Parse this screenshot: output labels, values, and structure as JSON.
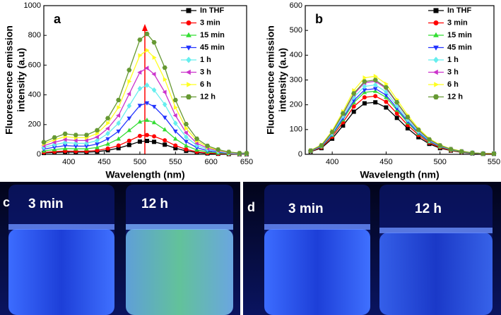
{
  "chart_data": [
    {
      "type": "line",
      "panel": "a",
      "xlabel": "Wavelength (nm)",
      "ylabel": [
        "Fluorescence emission",
        "intensity (a.u)"
      ],
      "x": [
        365,
        380,
        395,
        410,
        425,
        440,
        455,
        470,
        485,
        500,
        510,
        520,
        535,
        550,
        565,
        580,
        595,
        610,
        625,
        640,
        650
      ],
      "xlim": [
        365,
        650
      ],
      "xticks": [
        400,
        450,
        500,
        550,
        600,
        650
      ],
      "ylim": [
        0,
        1000
      ],
      "yticks": [
        0,
        200,
        400,
        600,
        800,
        1000
      ],
      "series": [
        {
          "name": "In THF",
          "color": "#000000",
          "marker": "square",
          "values": [
            9,
            13,
            15,
            14,
            14,
            18,
            27,
            41,
            63,
            86,
            90,
            84,
            65,
            41,
            23,
            12,
            6,
            4,
            2,
            1,
            1
          ]
        },
        {
          "name": "3 min",
          "color": "#ff0000",
          "marker": "circle",
          "values": [
            13,
            18,
            22,
            21,
            21,
            26,
            39,
            59,
            91,
            124,
            130,
            121,
            94,
            59,
            33,
            17,
            9,
            5,
            3,
            1,
            1
          ]
        },
        {
          "name": "15 min",
          "color": "#33dd33",
          "marker": "up",
          "values": [
            23,
            32,
            39,
            37,
            37,
            46,
            69,
            104,
            161,
            219,
            230,
            214,
            166,
            104,
            58,
            30,
            16,
            9,
            5,
            2,
            2
          ]
        },
        {
          "name": "45 min",
          "color": "#2233ff",
          "marker": "down",
          "values": [
            35,
            48,
            59,
            55,
            55,
            69,
            104,
            155,
            242,
            328,
            345,
            321,
            248,
            155,
            86,
            45,
            24,
            14,
            7,
            3,
            3
          ]
        },
        {
          "name": "1 h",
          "color": "#66eeee",
          "marker": "diamond",
          "values": [
            47,
            65,
            79,
            74,
            74,
            93,
            140,
            209,
            326,
            442,
            465,
            432,
            335,
            209,
            116,
            60,
            33,
            19,
            9,
            5,
            5
          ]
        },
        {
          "name": "3 h",
          "color": "#cc33cc",
          "marker": "left",
          "values": [
            58,
            81,
            99,
            93,
            93,
            116,
            174,
            261,
            406,
            551,
            580,
            539,
            418,
            261,
            145,
            75,
            41,
            23,
            12,
            6,
            6
          ]
        },
        {
          "name": "6 h",
          "color": "#ffff22",
          "marker": "right",
          "values": [
            70,
            98,
            119,
            112,
            112,
            140,
            210,
            315,
            490,
            665,
            700,
            651,
            504,
            315,
            175,
            91,
            49,
            28,
            14,
            7,
            7
          ]
        },
        {
          "name": "12 h",
          "color": "#669933",
          "marker": "hex",
          "values": [
            81,
            113,
            138,
            130,
            130,
            162,
            243,
            365,
            567,
            770,
            810,
            753,
            583,
            365,
            203,
            105,
            57,
            32,
            16,
            8,
            8
          ]
        }
      ]
    },
    {
      "type": "line",
      "panel": "b",
      "xlabel": "Wavelength (nm)",
      "ylabel": [
        "Fluorescence emission",
        "intensity (a.u)"
      ],
      "x": [
        380,
        390,
        400,
        410,
        420,
        430,
        440,
        450,
        460,
        470,
        480,
        490,
        500,
        510,
        520,
        530,
        540,
        550
      ],
      "xlim": [
        375,
        550
      ],
      "xticks": [
        400,
        450,
        500,
        550
      ],
      "ylim": [
        0,
        600
      ],
      "yticks": [
        0,
        100,
        200,
        300,
        400,
        500,
        600
      ],
      "series": [
        {
          "name": "In THF",
          "color": "#000000",
          "marker": "square",
          "values": [
            11,
            25,
            63,
            116,
            172,
            206,
            210,
            189,
            147,
            105,
            69,
            42,
            25,
            15,
            8,
            4,
            2,
            2
          ]
        },
        {
          "name": "3 min",
          "color": "#ff0000",
          "marker": "circle",
          "values": [
            12,
            28,
            71,
            129,
            193,
            230,
            235,
            212,
            165,
            118,
            78,
            47,
            28,
            16,
            9,
            5,
            2,
            2
          ]
        },
        {
          "name": "15 min",
          "color": "#33dd33",
          "marker": "up",
          "values": [
            13,
            31,
            77,
            140,
            209,
            250,
            255,
            230,
            179,
            128,
            84,
            51,
            31,
            18,
            10,
            5,
            3,
            3
          ]
        },
        {
          "name": "45 min",
          "color": "#2233ff",
          "marker": "down",
          "values": [
            13,
            32,
            80,
            146,
            217,
            260,
            265,
            239,
            186,
            133,
            87,
            53,
            32,
            19,
            11,
            5,
            3,
            3
          ]
        },
        {
          "name": "1 h",
          "color": "#66eeee",
          "marker": "diamond",
          "values": [
            14,
            34,
            84,
            154,
            230,
            274,
            280,
            252,
            196,
            140,
            92,
            56,
            34,
            20,
            11,
            6,
            3,
            3
          ]
        },
        {
          "name": "3 h",
          "color": "#cc33cc",
          "marker": "left",
          "values": [
            15,
            35,
            89,
            162,
            242,
            289,
            295,
            266,
            207,
            148,
            97,
            59,
            35,
            21,
            12,
            6,
            3,
            3
          ]
        },
        {
          "name": "6 h",
          "color": "#ffff22",
          "marker": "right",
          "values": [
            16,
            38,
            95,
            173,
            258,
            309,
            315,
            284,
            221,
            158,
            104,
            63,
            38,
            22,
            13,
            6,
            3,
            3
          ]
        },
        {
          "name": "12 h",
          "color": "#669933",
          "marker": "hex",
          "values": [
            15,
            36,
            90,
            165,
            246,
            294,
            300,
            270,
            210,
            150,
            99,
            60,
            36,
            21,
            12,
            6,
            3,
            3
          ]
        }
      ]
    }
  ],
  "photos": [
    {
      "panel": "c",
      "labels": [
        "3 min",
        "12 h"
      ]
    },
    {
      "panel": "d",
      "labels": [
        "3 min",
        "12 h"
      ]
    }
  ]
}
